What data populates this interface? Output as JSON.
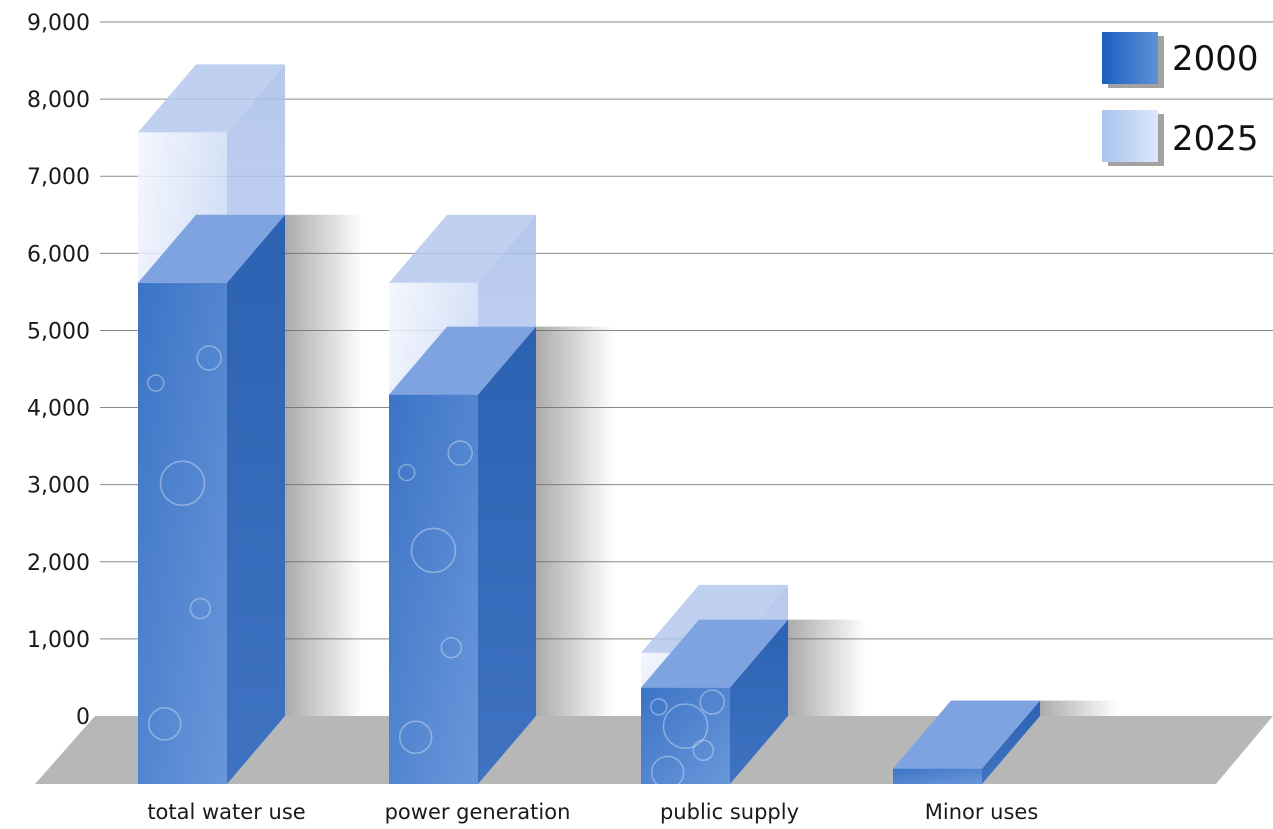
{
  "chart_data": {
    "type": "bar",
    "categories": [
      "total water use",
      "power generation",
      "public supply",
      "Minor uses"
    ],
    "series": [
      {
        "name": "2000",
        "values": [
          6500,
          5050,
          1250,
          200
        ]
      },
      {
        "name": "2025",
        "values": [
          8450,
          6500,
          1700,
          200
        ]
      }
    ],
    "ylim": [
      0,
      9000
    ],
    "yticks": [
      "0",
      "1,000",
      "2,000",
      "3,000",
      "4,000",
      "5,000",
      "6,000",
      "7,000",
      "8,000",
      "9,000"
    ],
    "legend_position": "top-right",
    "grid": true
  },
  "colors": {
    "series_2000": "#3f79c8",
    "series_2025": "#b9cdf1",
    "floor": "#b7b7b7",
    "grid": "#8a8a8a"
  }
}
